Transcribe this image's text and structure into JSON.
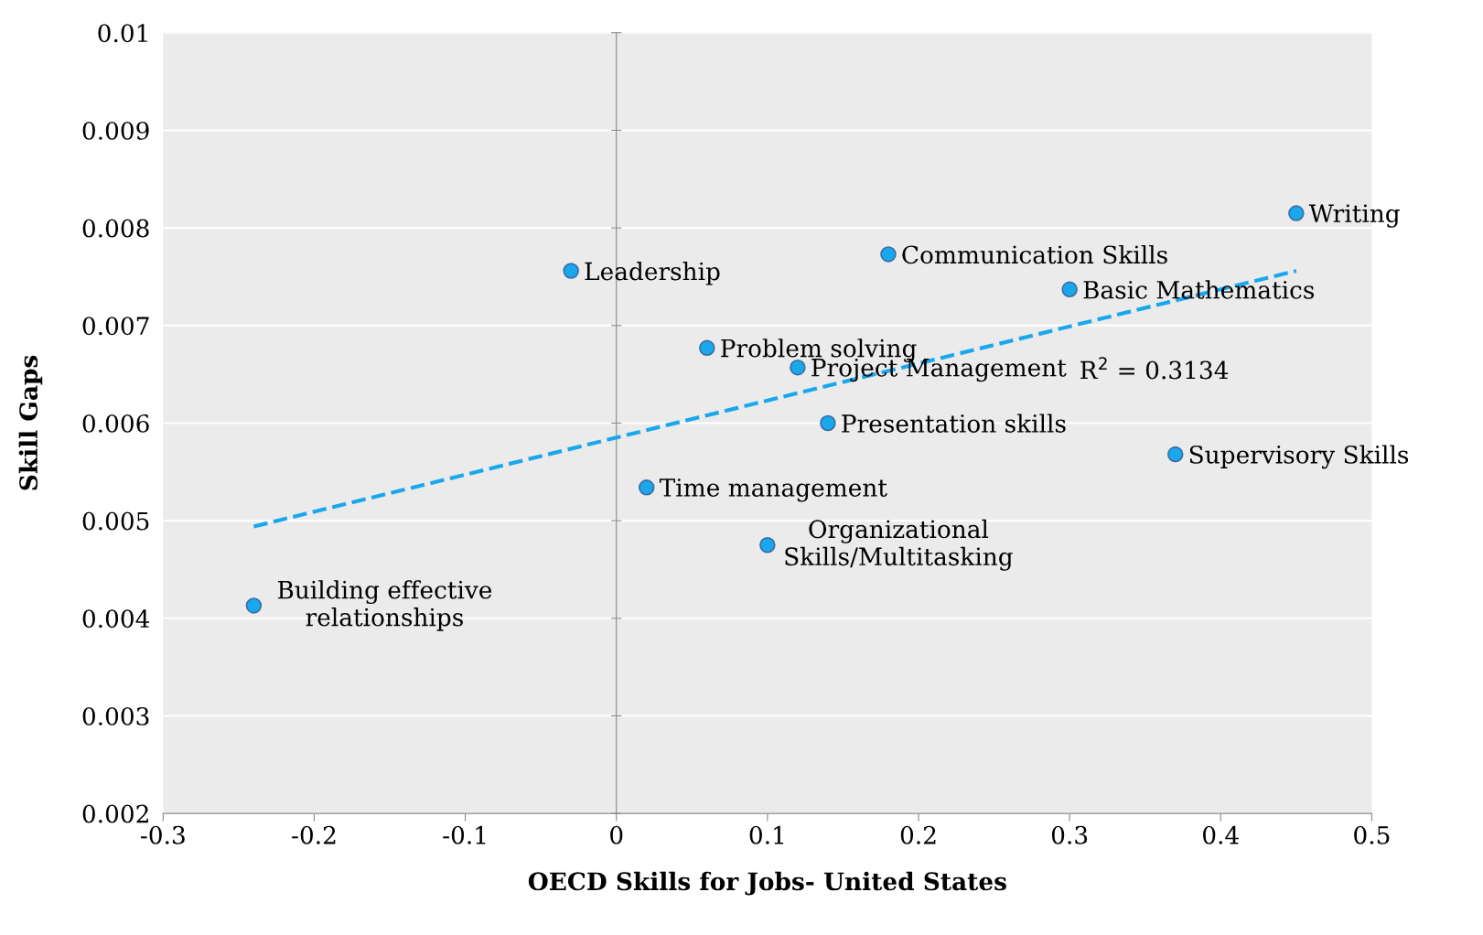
{
  "chart_data": {
    "type": "scatter",
    "xlabel": "OECD Skills for Jobs- United States",
    "ylabel": "Skill Gaps",
    "xlim": [
      -0.3,
      0.5
    ],
    "xticks": [
      -0.3,
      -0.2,
      -0.1,
      0,
      0.1,
      0.2,
      0.3,
      0.4,
      0.5
    ],
    "ylim": [
      0.002,
      0.01
    ],
    "yticks": [
      0.002,
      0.003,
      0.004,
      0.005,
      0.006,
      0.007,
      0.008,
      0.009,
      0.01
    ],
    "grid": "y",
    "series": [
      {
        "marker": "circle",
        "color": "#1aa7ec",
        "x": [
          0.45,
          0.18,
          0.3,
          -0.03,
          0.06,
          0.12,
          0.14,
          0.37,
          0.02,
          0.1,
          -0.24
        ],
        "values": [
          0.00815,
          0.00773,
          0.00737,
          0.00756,
          0.00677,
          0.00657,
          0.006,
          0.00568,
          0.00534,
          0.00475,
          0.00413
        ]
      },
      {
        "type": "line",
        "line_style": "dashed",
        "color": "#1aa7ec",
        "x": [
          -0.24,
          0.45
        ],
        "values": [
          0.00494,
          0.00756
        ]
      }
    ],
    "annotations": [
      {
        "text": "Writing",
        "x": 0.45,
        "y": 0.00815
      },
      {
        "text": "Communication Skills",
        "x": 0.18,
        "y": 0.00773
      },
      {
        "text": "Basic Mathematics",
        "x": 0.3,
        "y": 0.00737
      },
      {
        "text": "Leadership",
        "x": -0.03,
        "y": 0.00756
      },
      {
        "text": "Problem solving",
        "x": 0.06,
        "y": 0.00677
      },
      {
        "text": "Project Management",
        "x": 0.12,
        "y": 0.00657
      },
      {
        "text": "Presentation skills",
        "x": 0.14,
        "y": 0.006
      },
      {
        "text": "Supervisory Skills",
        "x": 0.37,
        "y": 0.00568
      },
      {
        "text": "Time management",
        "x": 0.02,
        "y": 0.00534
      },
      {
        "text": "Organizational\nSkills/Multitasking",
        "x": 0.1,
        "y": 0.00475
      },
      {
        "text": "Building effective\nrelationships",
        "x": -0.24,
        "y": 0.00413
      },
      "R$^{2}$ = 0.3134"
    ]
  }
}
